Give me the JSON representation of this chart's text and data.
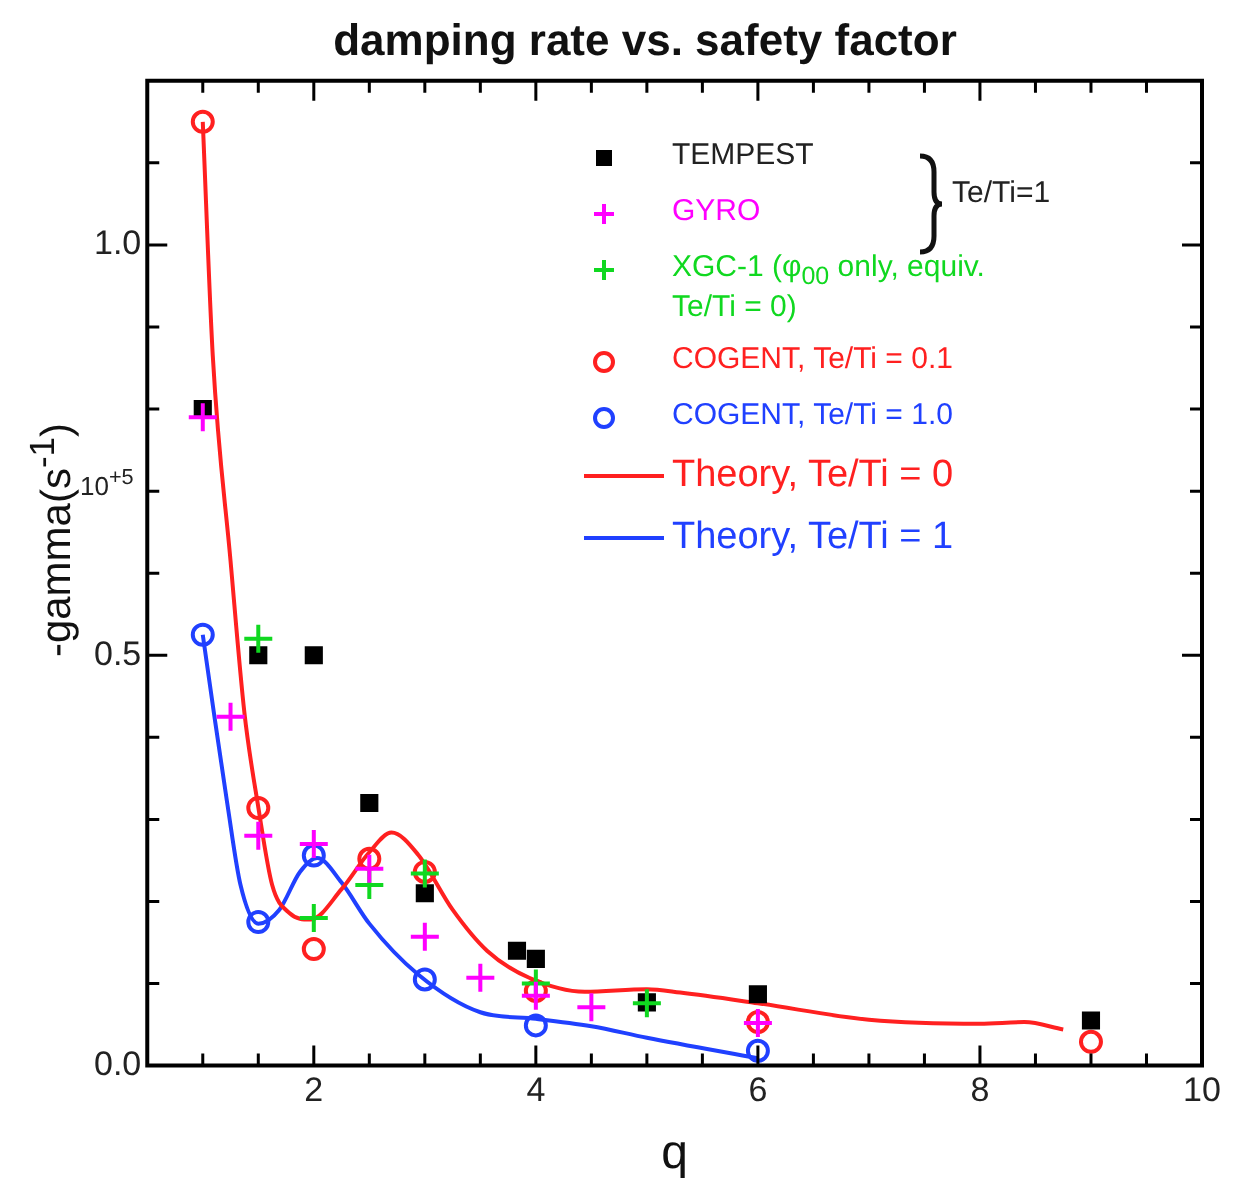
{
  "chart_data": {
    "type": "scatter",
    "title": "damping rate vs. safety factor",
    "xlabel": "q",
    "ylabel": "-gamma(s$^{-1}$)",
    "annotations": [
      "10$^{+5}$",
      "Te/Ti=1"
    ],
    "xlim": [
      0.5,
      10
    ],
    "ylim": [
      0,
      1.2
    ],
    "xticks": [
      {
        "value": 1,
        "label": null
      },
      {
        "value": 1.5,
        "label": null
      },
      2,
      {
        "value": 2.5,
        "label": null
      },
      {
        "value": 3,
        "label": null
      },
      {
        "value": 3.5,
        "label": null
      },
      4,
      {
        "value": 4.5,
        "label": null
      },
      {
        "value": 5,
        "label": null
      },
      {
        "value": 5.5,
        "label": null
      },
      6,
      {
        "value": 6.5,
        "label": null
      },
      {
        "value": 7,
        "label": null
      },
      {
        "value": 7.5,
        "label": null
      },
      8,
      {
        "value": 8.5,
        "label": null
      },
      {
        "value": 9,
        "label": null
      },
      {
        "value": 9.5,
        "label": null
      },
      10
    ],
    "yticks": [
      {
        "value": 0,
        "label": "0.0"
      },
      {
        "value": 0.1,
        "label": null
      },
      {
        "value": 0.2,
        "label": null
      },
      {
        "value": 0.3,
        "label": null
      },
      {
        "value": 0.4,
        "label": null
      },
      {
        "value": 0.5,
        "label": "0.5"
      },
      {
        "value": 0.6,
        "label": null
      },
      {
        "value": 0.7,
        "label": null
      },
      {
        "value": 0.8,
        "label": null
      },
      {
        "value": 0.9,
        "label": null
      },
      {
        "value": 1,
        "label": "1.0"
      },
      {
        "value": 1.1,
        "label": null
      }
    ],
    "grid": false,
    "legend": "top right",
    "series": [
      {
        "name": "TEMPEST",
        "type": "scatter",
        "marker": "square",
        "color": "#000000",
        "x": [
          1,
          1.5,
          2,
          2.5,
          3,
          3.83,
          4,
          5,
          6,
          9
        ],
        "values": [
          0.8,
          0.5,
          0.5,
          0.32,
          0.21,
          0.14,
          0.13,
          0.077,
          0.087,
          0.055
        ]
      },
      {
        "name": "GYRO",
        "type": "scatter",
        "marker": "cross",
        "color": "#ff00ff",
        "x": [
          1,
          1.25,
          1.5,
          2,
          2.5,
          3,
          3.5,
          4,
          4.5,
          6
        ],
        "values": [
          0.79,
          0.425,
          0.28,
          0.27,
          0.24,
          0.157,
          0.107,
          0.085,
          0.071,
          0.052
        ]
      },
      {
        "name": "XGC-1 (φ$_{00}$ only, equiv. Te/Ti = 0)",
        "type": "scatter",
        "marker": "cross",
        "color": "#10d820",
        "x": [
          1.5,
          2,
          2.5,
          3,
          4,
          5
        ],
        "values": [
          0.52,
          0.18,
          0.22,
          0.234,
          0.1,
          0.076
        ]
      },
      {
        "name": "COGENT, Te/Ti = 0.1",
        "type": "scatter",
        "marker": "circle",
        "color": "#ff2020",
        "x": [
          1,
          1.5,
          2,
          2.5,
          3,
          4,
          6,
          9
        ],
        "values": [
          1.15,
          0.314,
          0.142,
          0.252,
          0.236,
          0.091,
          0.053,
          0.029
        ]
      },
      {
        "name": "COGENT, Te/Ti = 1.0",
        "type": "scatter",
        "marker": "circle",
        "color": "#2040ff",
        "x": [
          1,
          1.5,
          2,
          3,
          4,
          6
        ],
        "values": [
          0.525,
          0.175,
          0.256,
          0.105,
          0.049,
          0.018
        ]
      },
      {
        "name": "Theory, Te/Ti = 0",
        "type": "line",
        "marker": "none",
        "color": "#ff2020",
        "x": [
          1,
          1.09,
          1.25,
          1.375,
          1.5,
          1.625,
          1.78,
          1.97,
          2.25,
          2.5,
          2.7,
          2.94,
          3.25,
          3.56,
          3.94,
          4.44,
          5,
          5.3,
          6,
          7,
          8,
          8.4,
          8.75
        ],
        "values": [
          1.15,
          0.865,
          0.615,
          0.43,
          0.315,
          0.22,
          0.186,
          0.178,
          0.215,
          0.26,
          0.284,
          0.257,
          0.19,
          0.14,
          0.107,
          0.09,
          0.093,
          0.089,
          0.076,
          0.056,
          0.051,
          0.053,
          0.044
        ]
      },
      {
        "name": "Theory, Te/Ti = 1",
        "type": "line",
        "marker": "none",
        "color": "#2040ff",
        "x": [
          1,
          1.1,
          1.22,
          1.34,
          1.5,
          1.69,
          1.875,
          2.03,
          2.25,
          2.5,
          2.94,
          3.5,
          4,
          4.5,
          5,
          6
        ],
        "values": [
          0.525,
          0.43,
          0.32,
          0.22,
          0.173,
          0.19,
          0.236,
          0.253,
          0.223,
          0.173,
          0.111,
          0.065,
          0.057,
          0.048,
          0.034,
          0.009
        ]
      }
    ]
  }
}
